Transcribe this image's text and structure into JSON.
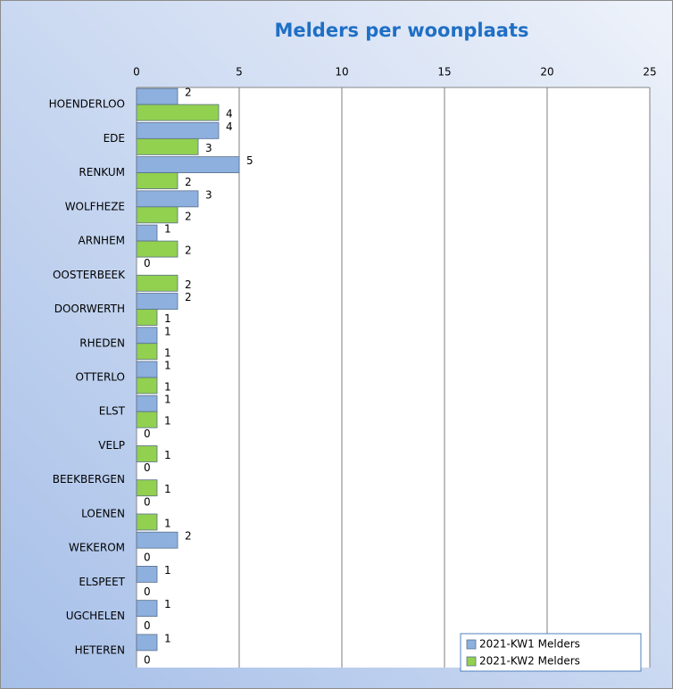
{
  "chart_data": {
    "type": "hbar",
    "title": "Melders per woonplaats",
    "categories": [
      "HOENDERLOO",
      "EDE",
      "RENKUM",
      "WOLFHEZE",
      "ARNHEM",
      "OOSTERBEEK",
      "DOORWERTH",
      "RHEDEN",
      "OTTERLO",
      "ELST",
      "VELP",
      "BEEKBERGEN",
      "LOENEN",
      "WEKEROM",
      "ELSPEET",
      "UGCHELEN",
      "HETEREN"
    ],
    "series": [
      {
        "name": "2021-KW1 Melders",
        "color": "#8db0de",
        "values": [
          2,
          4,
          5,
          3,
          1,
          0,
          2,
          1,
          1,
          1,
          0,
          0,
          0,
          2,
          1,
          1,
          1
        ]
      },
      {
        "name": "2021-KW2 Melders",
        "color": "#92d050",
        "values": [
          4,
          3,
          2,
          2,
          2,
          2,
          1,
          1,
          1,
          1,
          1,
          1,
          1,
          0,
          0,
          0,
          0
        ]
      }
    ],
    "xlim": [
      0,
      25
    ],
    "xticks": [
      0,
      5,
      10,
      15,
      20,
      25
    ],
    "grid": true,
    "legend": "lower right"
  }
}
